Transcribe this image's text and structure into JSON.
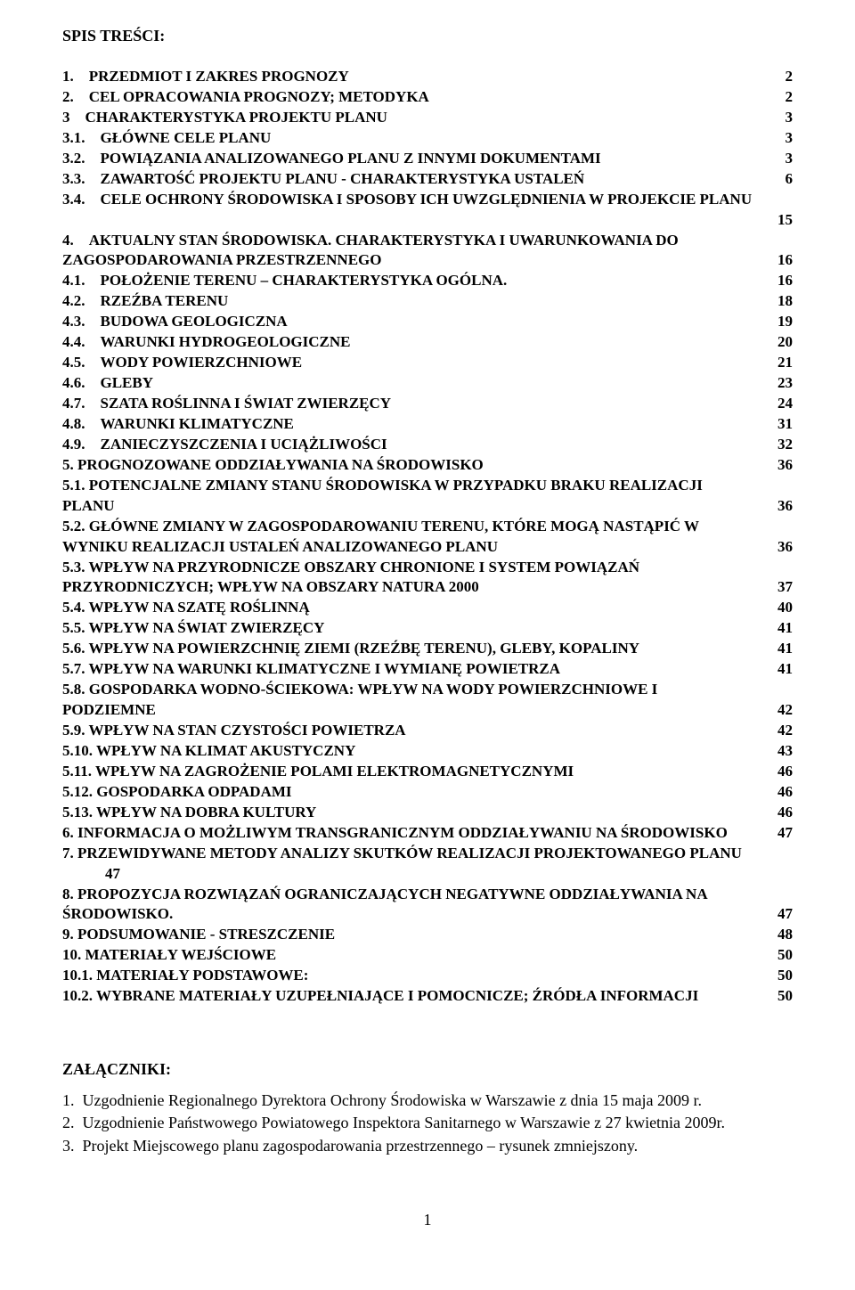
{
  "header": "SPIS TREŚCI:",
  "toc": [
    {
      "text": "1. PRZEDMIOT I ZAKRES PROGNOZY",
      "page": "2"
    },
    {
      "text": "2. CEL OPRACOWANIA PROGNOZY; METODYKA",
      "page": "2"
    },
    {
      "text": "3 CHARAKTERYSTYKA PROJEKTU PLANU",
      "page": "3"
    },
    {
      "text": "3.1. GŁÓWNE CELE PLANU",
      "page": "3"
    },
    {
      "text": "3.2. POWIĄZANIA ANALIZOWANEGO PLANU Z INNYMI DOKUMENTAMI",
      "page": "3"
    },
    {
      "text": "3.3. ZAWARTOŚĆ PROJEKTU PLANU - CHARAKTERYSTYKA USTALEŃ",
      "page": "6"
    },
    {
      "text": "3.4. CELE OCHRONY ŚRODOWISKA I SPOSOBY ICH UWZGLĘDNIENIA W PROJEKCIE PLANU",
      "page": ""
    },
    {
      "text": "",
      "page": "15"
    },
    {
      "text": "4. AKTUALNY STAN ŚRODOWISKA. CHARAKTERYSTYKA I UWARUNKOWANIA DO",
      "page": ""
    },
    {
      "text": "ZAGOSPODAROWANIA PRZESTRZENNEGO",
      "page": "16"
    },
    {
      "text": "4.1. POŁOŻENIE TERENU – CHARAKTERYSTYKA OGÓLNA.",
      "page": "16"
    },
    {
      "text": "4.2. RZEŹBA TERENU",
      "page": "18"
    },
    {
      "text": "4.3. BUDOWA GEOLOGICZNA",
      "page": "19"
    },
    {
      "text": "4.4. WARUNKI HYDROGEOLOGICZNE",
      "page": "20"
    },
    {
      "text": "4.5. WODY POWIERZCHNIOWE",
      "page": "21"
    },
    {
      "text": "4.6. GLEBY",
      "page": "23"
    },
    {
      "text": "4.7. SZATA ROŚLINNA I ŚWIAT ZWIERZĘCY",
      "page": "24"
    },
    {
      "text": "4.8. WARUNKI KLIMATYCZNE",
      "page": "31"
    },
    {
      "text": "4.9. ZANIECZYSZCZENIA I UCIĄŻLIWOŚCI",
      "page": "32"
    },
    {
      "text": "5. PROGNOZOWANE ODDZIAŁYWANIA NA ŚRODOWISKO",
      "page": "36"
    },
    {
      "text": "5.1. POTENCJALNE ZMIANY STANU ŚRODOWISKA W PRZYPADKU BRAKU REALIZACJI",
      "page": ""
    },
    {
      "text": "PLANU",
      "page": "36"
    },
    {
      "text": "5.2. GŁÓWNE ZMIANY W ZAGOSPODAROWANIU TERENU, KTÓRE MOGĄ NASTĄPIĆ W",
      "page": ""
    },
    {
      "text": "WYNIKU REALIZACJI USTALEŃ ANALIZOWANEGO PLANU",
      "page": "36"
    },
    {
      "text": "5.3. WPŁYW NA PRZYRODNICZE OBSZARY CHRONIONE I SYSTEM POWIĄZAŃ",
      "page": ""
    },
    {
      "text": "PRZYRODNICZYCH; WPŁYW NA OBSZARY NATURA 2000",
      "page": "37"
    },
    {
      "text": "5.4. WPŁYW NA SZATĘ ROŚLINNĄ",
      "page": "40"
    },
    {
      "text": "5.5. WPŁYW NA ŚWIAT ZWIERZĘCY",
      "page": "41"
    },
    {
      "text": "5.6. WPŁYW NA POWIERZCHNIĘ ZIEMI (RZEŹBĘ TERENU), GLEBY, KOPALINY",
      "page": "41"
    },
    {
      "text": "5.7. WPŁYW NA WARUNKI KLIMATYCZNE I WYMIANĘ POWIETRZA",
      "page": "41"
    },
    {
      "text": "5.8. GOSPODARKA WODNO-ŚCIEKOWA: WPŁYW NA WODY POWIERZCHNIOWE I",
      "page": ""
    },
    {
      "text": "PODZIEMNE",
      "page": "42"
    },
    {
      "text": "5.9. WPŁYW NA STAN CZYSTOŚCI POWIETRZA",
      "page": "42"
    },
    {
      "text": "5.10. WPŁYW NA KLIMAT AKUSTYCZNY",
      "page": "43"
    },
    {
      "text": "5.11. WPŁYW NA ZAGROŻENIE POLAMI ELEKTROMAGNETYCZNYMI",
      "page": "46"
    },
    {
      "text": "5.12. GOSPODARKA ODPADAMI",
      "page": "46"
    },
    {
      "text": "5.13. WPŁYW NA DOBRA KULTURY",
      "page": "46"
    },
    {
      "text": "6. INFORMACJA O MOŻLIWYM TRANSGRANICZNYM ODDZIAŁYWANIU NA ŚRODOWISKO",
      "page": "47"
    },
    {
      "text": "7. PRZEWIDYWANE METODY ANALIZY SKUTKÓW REALIZACJI PROJEKTOWANEGO PLANU",
      "page": ""
    },
    {
      "text": "47",
      "page": "",
      "indent": true
    },
    {
      "text": "8. PROPOZYCJA ROZWIĄZAŃ OGRANICZAJĄCYCH NEGATYWNE ODDZIAŁYWANIA NA",
      "page": ""
    },
    {
      "text": "ŚRODOWISKO.",
      "page": "47"
    },
    {
      "text": "9. PODSUMOWANIE - STRESZCZENIE",
      "page": "48"
    },
    {
      "text": "10. MATERIAŁY WEJŚCIOWE",
      "page": "50"
    },
    {
      "text": "10.1. MATERIAŁY PODSTAWOWE:",
      "page": "50"
    },
    {
      "text": "10.2. WYBRANE MATERIAŁY UZUPEŁNIAJĄCE I POMOCNICZE; ŹRÓDŁA INFORMACJI",
      "page": "50"
    }
  ],
  "attachments_title": "ZAŁĄCZNIKI:",
  "attachments": [
    "1. Uzgodnienie Regionalnego Dyrektora Ochrony Środowiska w Warszawie z dnia 15 maja 2009 r.",
    "2. Uzgodnienie Państwowego Powiatowego Inspektora Sanitarnego w Warszawie z 27 kwietnia 2009r.",
    "3. Projekt Miejscowego planu zagospodarowania przestrzennego – rysunek zmniejszony."
  ],
  "page_number": "1"
}
